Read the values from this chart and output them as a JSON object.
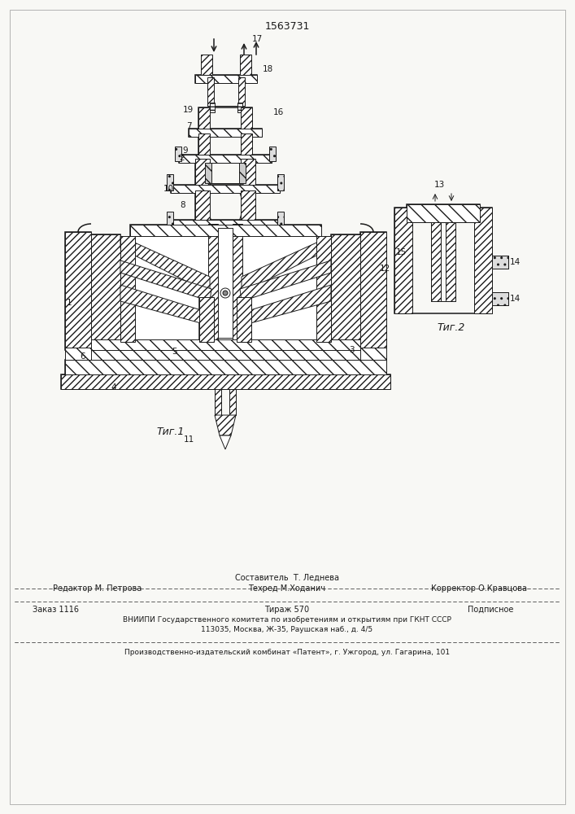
{
  "patent_number": "1563731",
  "fig1_label": "Τиг.1",
  "fig2_label": "Τиг.2",
  "footer_line1_left": "Редактор М. Петрова",
  "footer_line1_center": "Составитель  Т. Леднева",
  "footer_line1_center2": "Техред М.Ходанич",
  "footer_line1_right": "Корректор О.Кравцова",
  "footer_line2_left": "Заказ 1116",
  "footer_line2_center": "Тираж 570",
  "footer_line2_right": "Подписное",
  "footer_line3": "ВНИИПИ Государственного комитета по изобретениям и открытиям при ГКНТ СССР",
  "footer_line4": "113035, Москва, Ж-35, Раушская наб., д. 4/5",
  "footer_line5": "Производственно-издательский комбинат «Патент», г. Ужгород, ул. Гагарина, 101",
  "bg_color": "#f8f8f5",
  "line_color": "#1a1a1a"
}
